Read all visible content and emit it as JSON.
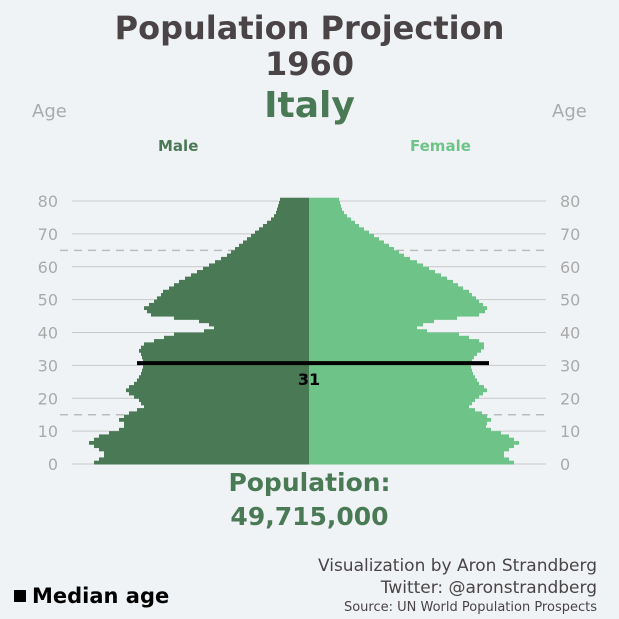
{
  "header": {
    "title_line1": "Population Projection",
    "year": "1960",
    "country": "Italy"
  },
  "age_label_left": "Age",
  "age_label_right": "Age",
  "male_label": "Male",
  "female_label": "Female",
  "colors": {
    "male": "#4a7a55",
    "female": "#6ec488",
    "text": "#4a4446",
    "axis": "#aaaaaa"
  },
  "population": {
    "label": "Population:",
    "value": "49,715,000"
  },
  "median": {
    "age": 31,
    "label": "31"
  },
  "legend": {
    "label": "Median age"
  },
  "credits": {
    "line1": "Visualization by Aron Strandberg",
    "line2": "Twitter: @aronstrandberg",
    "line3": "Source: UN World Population Prospects"
  },
  "chart_data": {
    "type": "bar",
    "orientation": "horizontal-pyramid",
    "y_ticks": [
      0,
      10,
      20,
      30,
      40,
      50,
      60,
      70,
      80
    ],
    "ylim": [
      0,
      80
    ],
    "reference_lines": [
      15,
      65
    ],
    "age_step": 1,
    "series": [
      {
        "name": "Male",
        "values": [
          215,
          210,
          205,
          205,
          210,
          215,
          220,
          215,
          210,
          200,
          190,
          185,
          185,
          190,
          185,
          180,
          172,
          165,
          168,
          170,
          175,
          180,
          183,
          180,
          175,
          172,
          170,
          168,
          167,
          166,
          166,
          166,
          167,
          168,
          170,
          168,
          165,
          155,
          145,
          135,
          105,
          95,
          100,
          110,
          135,
          158,
          162,
          165,
          160,
          155,
          152,
          148,
          146,
          140,
          135,
          130,
          124,
          118,
          112,
          106,
          100,
          94,
          88,
          82,
          78,
          74,
          70,
          66,
          62,
          58,
          54,
          50,
          46,
          42,
          38,
          35,
          33,
          32,
          31,
          30,
          29
        ]
      },
      {
        "name": "Female",
        "values": [
          205,
          200,
          195,
          195,
          200,
          205,
          210,
          205,
          200,
          192,
          182,
          177,
          178,
          182,
          178,
          173,
          166,
          160,
          163,
          166,
          170,
          174,
          178,
          175,
          170,
          168,
          166,
          164,
          163,
          162,
          162,
          163,
          165,
          168,
          172,
          175,
          175,
          170,
          160,
          150,
          118,
          108,
          114,
          125,
          148,
          170,
          176,
          178,
          174,
          170,
          167,
          163,
          160,
          154,
          149,
          144,
          138,
          132,
          126,
          120,
          114,
          108,
          101,
          95,
          90,
          85,
          80,
          75,
          70,
          65,
          60,
          55,
          50,
          46,
          42,
          38,
          35,
          33,
          32,
          31,
          30
        ]
      }
    ]
  }
}
